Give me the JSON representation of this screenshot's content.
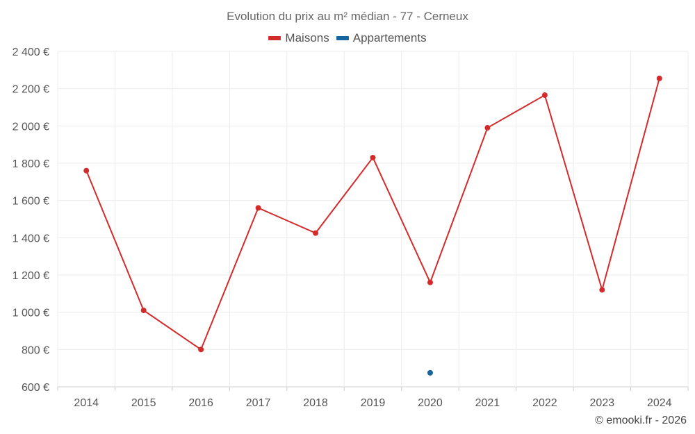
{
  "chart_data": {
    "type": "line",
    "title": "Evolution du prix au m² médian - 77 - Cerneux",
    "x": [
      "2014",
      "2015",
      "2016",
      "2017",
      "2018",
      "2019",
      "2020",
      "2021",
      "2022",
      "2023",
      "2024"
    ],
    "series": [
      {
        "name": "Maisons",
        "color": "#d42a2a",
        "values": [
          1760,
          1010,
          800,
          1560,
          1425,
          1830,
          1160,
          1990,
          2165,
          1120,
          2255
        ]
      },
      {
        "name": "Appartements",
        "color": "#1565a0",
        "values": [
          null,
          null,
          null,
          null,
          null,
          null,
          675,
          null,
          null,
          null,
          null
        ]
      }
    ],
    "ylim": [
      600,
      2400
    ],
    "yticks": [
      600,
      800,
      1000,
      1200,
      1400,
      1600,
      1800,
      2000,
      2200,
      2400
    ],
    "ytick_labels": [
      "600 €",
      "800 €",
      "1 000 €",
      "1 200 €",
      "1 400 €",
      "1 600 €",
      "1 800 €",
      "2 000 €",
      "2 200 €",
      "2 400 €"
    ],
    "grid": true,
    "legend_position": "top-center"
  },
  "credit": "© emooki.fr - 2026"
}
